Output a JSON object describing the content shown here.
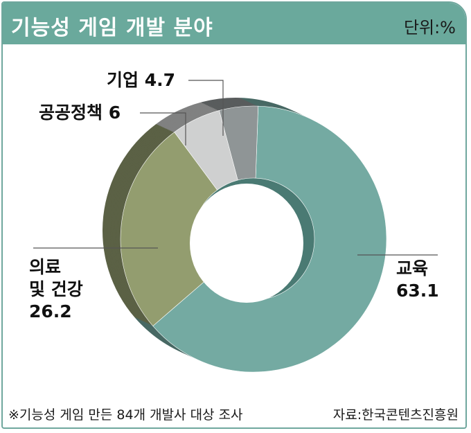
{
  "header": {
    "title": "기능성 게임 개발 분야",
    "unit": "단위:%"
  },
  "chart_data": {
    "type": "pie",
    "style": "3d-donut",
    "unit": "%",
    "categories": [
      "교육",
      "의료 및 건강",
      "공공정책",
      "기업"
    ],
    "values": [
      63.1,
      26.2,
      6,
      4.7
    ],
    "colors": {
      "교육": "#74aaa2",
      "의료 및 건강": "#939d6f",
      "공공정책": "#cfd0d0",
      "기업": "#8f9596"
    },
    "labels": {
      "education": {
        "name": "교육",
        "value": "63.1"
      },
      "health_line1": "의료",
      "health_line2": "및 건강",
      "health_value": "26.2",
      "policy": "공공정책 6",
      "business": "기업 4.7"
    }
  },
  "footer": {
    "note": "※기능성 게임 만든 84개 개발사 대상 조사",
    "source": "자료:한국콘텐츠진흥원"
  }
}
